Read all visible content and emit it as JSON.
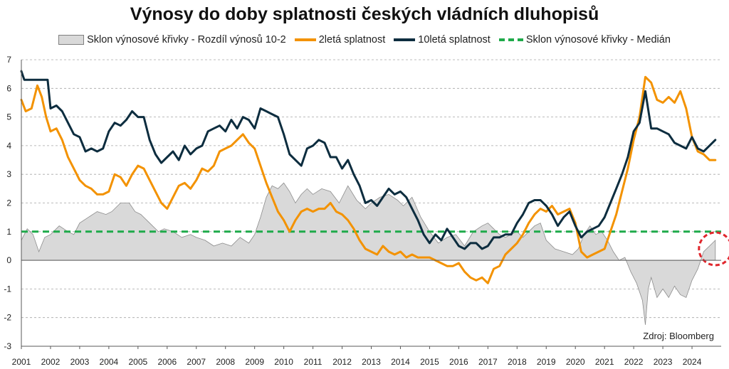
{
  "chart_data": {
    "type": "line",
    "title": "Výnosy do doby splatnosti českých vládních dluhopisů",
    "source": "Zdroj: Bloomberg",
    "ylim": [
      -3,
      7
    ],
    "yticks": [
      7,
      6,
      5,
      4,
      3,
      2,
      1,
      0,
      -1,
      -2,
      -3
    ],
    "xlim": [
      2001,
      2025
    ],
    "xticks": [
      2001,
      2002,
      2003,
      2004,
      2005,
      2006,
      2007,
      2008,
      2009,
      2010,
      2011,
      2012,
      2013,
      2014,
      2015,
      2016,
      2017,
      2018,
      2019,
      2020,
      2021,
      2022,
      2023,
      2024
    ],
    "grid": true,
    "legend_position": "top",
    "colors": {
      "area_fill": "#d9d9d9",
      "area_stroke": "#8c8c8c",
      "y2": "#f39200",
      "y10": "#0d2d3f",
      "median": "#1faa4a",
      "highlight": "#e0262c"
    },
    "series": [
      {
        "name": "Sklon výnosové křivky - Rozdíl výnosů 10-2",
        "kind": "area",
        "x": [
          2001.0,
          2001.2,
          2001.4,
          2001.6,
          2001.8,
          2002.0,
          2002.3,
          2002.6,
          2002.8,
          2003.0,
          2003.3,
          2003.6,
          2003.9,
          2004.1,
          2004.4,
          2004.7,
          2004.9,
          2005.1,
          2005.4,
          2005.7,
          2005.9,
          2006.2,
          2006.5,
          2006.8,
          2007.0,
          2007.3,
          2007.6,
          2007.9,
          2008.2,
          2008.5,
          2008.8,
          2009.0,
          2009.2,
          2009.4,
          2009.6,
          2009.8,
          2010.0,
          2010.2,
          2010.4,
          2010.6,
          2010.8,
          2011.0,
          2011.3,
          2011.6,
          2011.9,
          2012.2,
          2012.5,
          2012.8,
          2013.0,
          2013.3,
          2013.6,
          2013.9,
          2014.1,
          2014.4,
          2014.7,
          2015.0,
          2015.3,
          2015.6,
          2015.9,
          2016.2,
          2016.5,
          2016.8,
          2017.0,
          2017.2,
          2017.4,
          2017.6,
          2017.8,
          2018.0,
          2018.2,
          2018.4,
          2018.6,
          2018.8,
          2019.0,
          2019.3,
          2019.6,
          2019.9,
          2020.1,
          2020.3,
          2020.5,
          2020.7,
          2020.9,
          2021.1,
          2021.3,
          2021.5,
          2021.7,
          2021.9,
          2022.1,
          2022.3,
          2022.4,
          2022.5,
          2022.6,
          2022.8,
          2023.0,
          2023.2,
          2023.4,
          2023.6,
          2023.8,
          2024.0,
          2024.2,
          2024.4,
          2024.6,
          2024.8
        ],
        "values": [
          0.7,
          1.1,
          0.9,
          0.3,
          0.8,
          0.9,
          1.2,
          1.0,
          0.9,
          1.3,
          1.5,
          1.7,
          1.6,
          1.7,
          2.0,
          2.0,
          1.7,
          1.6,
          1.3,
          1.0,
          1.1,
          1.0,
          0.8,
          0.9,
          0.8,
          0.7,
          0.5,
          0.6,
          0.5,
          0.8,
          0.6,
          0.9,
          1.5,
          2.2,
          2.6,
          2.5,
          2.7,
          2.4,
          2.0,
          2.3,
          2.5,
          2.3,
          2.5,
          2.4,
          2.0,
          2.6,
          2.1,
          1.8,
          2.0,
          2.2,
          2.3,
          2.1,
          1.9,
          2.2,
          1.5,
          1.0,
          0.6,
          0.8,
          0.9,
          0.5,
          1.0,
          1.2,
          1.3,
          1.1,
          0.9,
          0.8,
          0.9,
          1.0,
          0.8,
          1.0,
          1.2,
          1.3,
          0.7,
          0.4,
          0.3,
          0.2,
          0.4,
          0.9,
          1.2,
          0.9,
          1.0,
          0.7,
          0.3,
          0.0,
          0.1,
          -0.4,
          -0.8,
          -1.4,
          -2.25,
          -1.0,
          -0.6,
          -1.3,
          -1.0,
          -1.3,
          -0.9,
          -1.2,
          -1.3,
          -0.7,
          -0.3,
          0.3,
          0.5,
          0.7
        ]
      },
      {
        "name": "2letá splatnost",
        "kind": "line",
        "x": [
          2001.0,
          2001.15,
          2001.35,
          2001.55,
          2001.7,
          2001.85,
          2002.0,
          2002.2,
          2002.4,
          2002.6,
          2002.8,
          2003.0,
          2003.2,
          2003.4,
          2003.6,
          2003.8,
          2004.0,
          2004.2,
          2004.4,
          2004.6,
          2004.8,
          2005.0,
          2005.2,
          2005.4,
          2005.6,
          2005.8,
          2006.0,
          2006.2,
          2006.4,
          2006.6,
          2006.8,
          2007.0,
          2007.2,
          2007.4,
          2007.6,
          2007.8,
          2008.0,
          2008.2,
          2008.4,
          2008.6,
          2008.8,
          2009.0,
          2009.2,
          2009.4,
          2009.6,
          2009.8,
          2010.0,
          2010.2,
          2010.4,
          2010.6,
          2010.8,
          2011.0,
          2011.2,
          2011.4,
          2011.6,
          2011.8,
          2012.0,
          2012.2,
          2012.4,
          2012.6,
          2012.8,
          2013.0,
          2013.2,
          2013.4,
          2013.6,
          2013.8,
          2014.0,
          2014.2,
          2014.4,
          2014.6,
          2014.8,
          2015.0,
          2015.2,
          2015.4,
          2015.6,
          2015.8,
          2016.0,
          2016.2,
          2016.4,
          2016.6,
          2016.8,
          2017.0,
          2017.2,
          2017.4,
          2017.6,
          2017.8,
          2018.0,
          2018.2,
          2018.4,
          2018.6,
          2018.8,
          2019.0,
          2019.2,
          2019.4,
          2019.6,
          2019.8,
          2020.0,
          2020.2,
          2020.4,
          2020.6,
          2020.8,
          2021.0,
          2021.2,
          2021.4,
          2021.6,
          2021.8,
          2022.0,
          2022.2,
          2022.4,
          2022.6,
          2022.8,
          2023.0,
          2023.2,
          2023.4,
          2023.6,
          2023.8,
          2024.0,
          2024.2,
          2024.4,
          2024.6,
          2024.8
        ],
        "values": [
          5.6,
          5.2,
          5.3,
          6.1,
          5.7,
          5.0,
          4.5,
          4.6,
          4.2,
          3.6,
          3.2,
          2.8,
          2.6,
          2.5,
          2.3,
          2.3,
          2.4,
          3.0,
          2.9,
          2.6,
          3.0,
          3.3,
          3.2,
          2.8,
          2.4,
          2.0,
          1.8,
          2.2,
          2.6,
          2.7,
          2.5,
          2.8,
          3.2,
          3.1,
          3.3,
          3.8,
          3.9,
          4.0,
          4.2,
          4.4,
          4.1,
          3.9,
          3.3,
          2.7,
          2.2,
          1.7,
          1.4,
          1.0,
          1.4,
          1.7,
          1.8,
          1.7,
          1.8,
          1.8,
          2.0,
          1.7,
          1.6,
          1.4,
          1.1,
          0.7,
          0.4,
          0.3,
          0.2,
          0.5,
          0.3,
          0.2,
          0.3,
          0.1,
          0.2,
          0.1,
          0.1,
          0.1,
          0.0,
          -0.1,
          -0.2,
          -0.2,
          -0.1,
          -0.4,
          -0.6,
          -0.7,
          -0.6,
          -0.8,
          -0.3,
          -0.2,
          0.2,
          0.4,
          0.6,
          0.9,
          1.3,
          1.6,
          1.8,
          1.7,
          1.9,
          1.6,
          1.7,
          1.8,
          1.3,
          0.3,
          0.1,
          0.2,
          0.3,
          0.4,
          1.0,
          1.6,
          2.4,
          3.2,
          4.2,
          5.0,
          6.4,
          6.2,
          5.6,
          5.5,
          5.7,
          5.5,
          5.9,
          5.3,
          4.3,
          3.8,
          3.7,
          3.5,
          3.5
        ]
      },
      {
        "name": "10letá splatnost",
        "kind": "line",
        "x": [
          2001.0,
          2001.1,
          2001.3,
          2001.5,
          2001.7,
          2001.9,
          2002.0,
          2002.2,
          2002.4,
          2002.6,
          2002.8,
          2003.0,
          2003.2,
          2003.4,
          2003.6,
          2003.8,
          2004.0,
          2004.2,
          2004.4,
          2004.6,
          2004.8,
          2005.0,
          2005.2,
          2005.4,
          2005.6,
          2005.8,
          2006.0,
          2006.2,
          2006.4,
          2006.6,
          2006.8,
          2007.0,
          2007.2,
          2007.4,
          2007.6,
          2007.8,
          2008.0,
          2008.2,
          2008.4,
          2008.6,
          2008.8,
          2009.0,
          2009.2,
          2009.4,
          2009.6,
          2009.8,
          2010.0,
          2010.2,
          2010.4,
          2010.6,
          2010.8,
          2011.0,
          2011.2,
          2011.4,
          2011.6,
          2011.8,
          2012.0,
          2012.2,
          2012.4,
          2012.6,
          2012.8,
          2013.0,
          2013.2,
          2013.4,
          2013.6,
          2013.8,
          2014.0,
          2014.2,
          2014.4,
          2014.6,
          2014.8,
          2015.0,
          2015.2,
          2015.4,
          2015.6,
          2015.8,
          2016.0,
          2016.2,
          2016.4,
          2016.6,
          2016.8,
          2017.0,
          2017.2,
          2017.4,
          2017.6,
          2017.8,
          2018.0,
          2018.2,
          2018.4,
          2018.6,
          2018.8,
          2019.0,
          2019.2,
          2019.4,
          2019.6,
          2019.8,
          2020.0,
          2020.2,
          2020.4,
          2020.6,
          2020.8,
          2021.0,
          2021.2,
          2021.4,
          2021.6,
          2021.8,
          2022.0,
          2022.2,
          2022.4,
          2022.6,
          2022.8,
          2023.0,
          2023.2,
          2023.4,
          2023.6,
          2023.8,
          2024.0,
          2024.2,
          2024.4,
          2024.6,
          2024.8
        ],
        "values": [
          6.6,
          6.3,
          6.3,
          6.3,
          6.3,
          6.3,
          5.3,
          5.4,
          5.2,
          4.8,
          4.4,
          4.3,
          3.8,
          3.9,
          3.8,
          3.9,
          4.5,
          4.8,
          4.7,
          4.9,
          5.2,
          5.0,
          5.0,
          4.2,
          3.7,
          3.4,
          3.6,
          3.8,
          3.5,
          4.0,
          3.7,
          3.9,
          4.0,
          4.5,
          4.6,
          4.7,
          4.5,
          4.9,
          4.6,
          5.0,
          4.9,
          4.6,
          5.3,
          5.2,
          5.1,
          5.0,
          4.4,
          3.7,
          3.5,
          3.3,
          3.9,
          4.0,
          4.2,
          4.1,
          3.6,
          3.6,
          3.2,
          3.5,
          3.0,
          2.6,
          2.0,
          2.1,
          1.9,
          2.2,
          2.5,
          2.3,
          2.4,
          2.2,
          1.8,
          1.4,
          0.9,
          0.6,
          0.9,
          0.7,
          1.1,
          0.8,
          0.5,
          0.4,
          0.6,
          0.6,
          0.4,
          0.5,
          0.8,
          0.8,
          0.9,
          0.9,
          1.3,
          1.6,
          2.0,
          2.1,
          2.1,
          1.9,
          1.6,
          1.2,
          1.5,
          1.7,
          1.2,
          0.8,
          1.0,
          1.1,
          1.2,
          1.5,
          2.0,
          2.5,
          3.0,
          3.6,
          4.5,
          4.8,
          5.9,
          4.6,
          4.6,
          4.5,
          4.4,
          4.1,
          4.0,
          3.9,
          4.3,
          3.9,
          3.8,
          4.0,
          4.2
        ]
      },
      {
        "name": "Sklon výnosové křivky - Medián",
        "kind": "hline",
        "value": 1.0
      }
    ]
  }
}
